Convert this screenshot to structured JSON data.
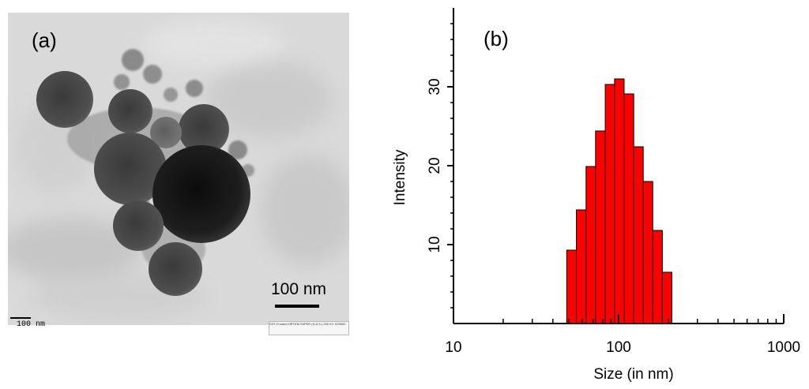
{
  "panels": {
    "tem_label": "(a)",
    "chart_label": "(b)"
  },
  "tem_image": {
    "scale_bar_label": "100 nm",
    "small_scale_label": "100 nm",
    "imprint_text": "DST-Funded HRTEM SIIPER (S.A.S.)  200 KV  X29000"
  },
  "chart_data": {
    "type": "bar",
    "xlabel": "Size (in nm)",
    "ylabel": "Intensity",
    "xscale": "log",
    "xlim": [
      10,
      1000
    ],
    "ylim": [
      0,
      40
    ],
    "x_ticks": [
      10,
      100,
      1000
    ],
    "x_tick_labels": [
      "10",
      "100",
      "1000"
    ],
    "y_ticks": [
      10,
      20,
      30
    ],
    "y_tick_labels": [
      "10",
      "20",
      "30"
    ],
    "bar_color": "#ff0000",
    "bins": [
      {
        "low": 48.5,
        "high": 55.5,
        "value": 9.3
      },
      {
        "low": 55.5,
        "high": 63.5,
        "value": 14.4
      },
      {
        "low": 63.5,
        "high": 72.5,
        "value": 19.9
      },
      {
        "low": 72.5,
        "high": 83.0,
        "value": 24.4
      },
      {
        "low": 83.0,
        "high": 94.5,
        "value": 30.3
      },
      {
        "low": 94.5,
        "high": 108.0,
        "value": 31.0
      },
      {
        "low": 108.0,
        "high": 123.5,
        "value": 29.1
      },
      {
        "low": 123.5,
        "high": 141.0,
        "value": 22.4
      },
      {
        "low": 141.0,
        "high": 161.0,
        "value": 18.0
      },
      {
        "low": 161.0,
        "high": 184.0,
        "value": 11.8
      },
      {
        "low": 184.0,
        "high": 210.0,
        "value": 6.5
      }
    ]
  }
}
